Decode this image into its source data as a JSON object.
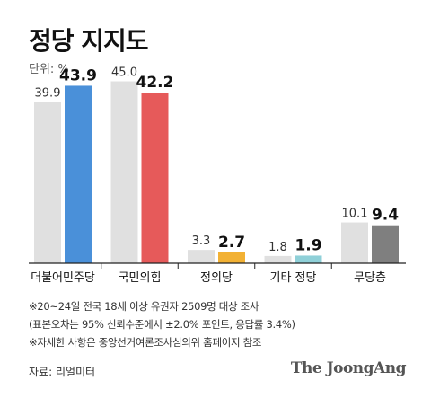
{
  "title": "정당 지지도",
  "unit": "단위: %",
  "chart_data": {
    "type": "bar",
    "categories": [
      "더불어민주당",
      "국민의힘",
      "정의당",
      "기타 정당",
      "무당층"
    ],
    "series": [
      {
        "values": [
          39.9,
          45.0,
          3.3,
          1.8,
          10.1
        ],
        "color": "#e0e0e0"
      },
      {
        "values": [
          43.9,
          42.2,
          2.7,
          1.9,
          9.4
        ]
      }
    ],
    "current_colors": [
      "#4a90d9",
      "#e65a5a",
      "#f2b134",
      "#8fd0d8",
      "#7f7f7f"
    ],
    "ylim": [
      0,
      50
    ],
    "grid": false,
    "legend": "none"
  },
  "notes": [
    "※20~24일 전국 18세 이상 유권자 2509명 대상 조사",
    "(표본오차는 95% 신뢰수준에서 ±2.0% 포인트, 응답률 3.4%)",
    "※자세한 사항은 중앙선거여론조사심의위 홈페이지 참조"
  ],
  "source": "자료: 리얼미터",
  "brand": "The JoongAng"
}
